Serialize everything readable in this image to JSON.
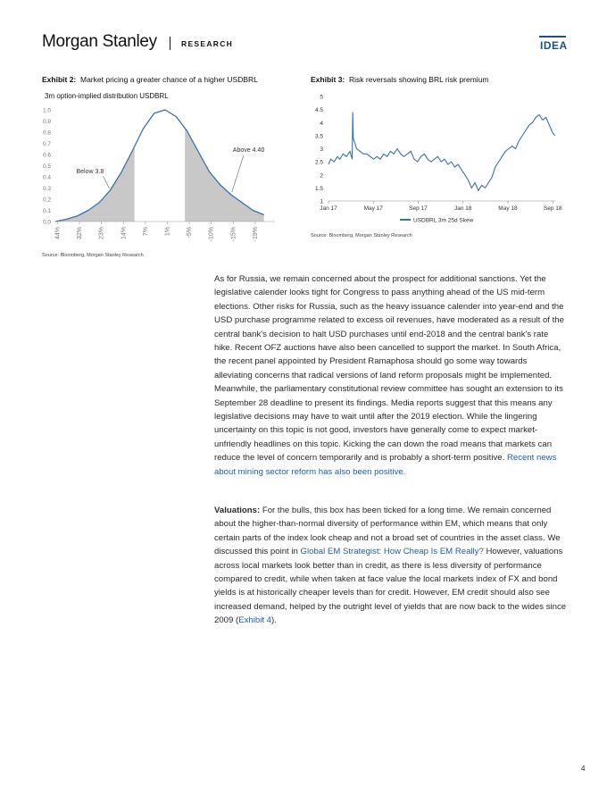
{
  "header": {
    "logo": "Morgan Stanley",
    "section": "RESEARCH",
    "tag": "IDEA"
  },
  "exhibit2": {
    "label": "Exhibit 2:",
    "title": "Market pricing a greater chance of a higher USDBRL",
    "source": "Source: Bloomberg, Morgan Stanley Research"
  },
  "exhibit3": {
    "label": "Exhibit 3:",
    "title": "Risk reversals showing BRL risk premium",
    "source": "Source: Bloomberg, Morgan Stanley Research"
  },
  "chart_data": [
    {
      "type": "area",
      "title": "3m option-implied distribution USDBRL",
      "categories": [
        "44%",
        "32%",
        "23%",
        "14%",
        "7%",
        "1%",
        "-5%",
        "-10%",
        "-15%",
        "-19%"
      ],
      "y_ticks": [
        "0.0",
        "0.1",
        "0.2",
        "0.3",
        "0.4",
        "0.5",
        "0.6",
        "0.7",
        "0.8",
        "0.9",
        "1.0"
      ],
      "ylim": [
        0,
        1.0
      ],
      "series": [
        {
          "x": [
            0,
            0.5,
            1,
            1.5,
            2,
            2.5,
            3,
            3.5,
            4,
            4.5,
            5,
            5.5,
            6,
            6.5,
            7,
            7.5,
            8,
            8.5,
            9,
            9.5
          ],
          "values": [
            0.0,
            0.02,
            0.05,
            0.1,
            0.17,
            0.28,
            0.44,
            0.63,
            0.83,
            0.97,
            1.0,
            0.94,
            0.81,
            0.63,
            0.45,
            0.33,
            0.24,
            0.17,
            0.1,
            0.06
          ]
        }
      ],
      "shaded_left_end": 3.6,
      "shaded_right_start": 5.9,
      "annotations": [
        {
          "text": "Below 3.8",
          "at_x": 2.5
        },
        {
          "text": "Above 4.40",
          "at_x": 8.0
        }
      ]
    },
    {
      "type": "line",
      "x_ticks": [
        "Jan 17",
        "May 17",
        "Sep 17",
        "Jan 18",
        "May 18",
        "Sep 18"
      ],
      "y_ticks": [
        "1",
        "1.5",
        "2",
        "2.5",
        "3",
        "3.5",
        "4",
        "4.5",
        "5"
      ],
      "ylim": [
        1,
        5
      ],
      "legend": "USDBRL 3m 25d Skew",
      "legend_position": "bottom",
      "series": [
        {
          "name": "USDBRL 3m 25d Skew",
          "x": [
            0,
            0.2,
            0.5,
            0.8,
            1.0,
            1.3,
            1.6,
            1.9,
            2.1,
            2.15,
            2.2,
            2.5,
            2.8,
            3.1,
            3.4,
            3.7,
            4.0,
            4.3,
            4.6,
            4.9,
            5.2,
            5.5,
            5.8,
            6.1,
            6.4,
            6.7,
            7.0,
            7.3,
            7.6,
            7.9,
            8.2,
            8.5,
            8.8,
            9.1,
            9.4,
            9.7,
            10.0,
            10.3,
            10.6,
            10.9,
            11.2,
            11.5,
            11.8,
            12.1,
            12.4,
            12.7,
            13.0,
            13.3,
            13.6,
            13.9,
            14.2,
            14.5,
            14.8,
            15.1,
            15.4,
            15.7,
            16.0,
            16.3,
            16.6,
            16.9,
            17.2,
            17.5,
            17.8,
            18.1,
            18.4,
            18.7,
            19.0,
            19.3,
            19.6,
            19.9,
            20.1
          ],
          "values": [
            2.4,
            2.6,
            2.5,
            2.7,
            2.6,
            2.8,
            2.7,
            2.9,
            2.6,
            4.4,
            3.4,
            3.0,
            2.9,
            2.8,
            2.8,
            2.7,
            2.6,
            2.7,
            2.6,
            2.8,
            2.7,
            2.9,
            2.8,
            3.0,
            2.8,
            2.7,
            2.8,
            2.9,
            2.6,
            2.5,
            2.7,
            2.8,
            2.6,
            2.5,
            2.6,
            2.7,
            2.5,
            2.6,
            2.4,
            2.5,
            2.3,
            2.4,
            2.2,
            2.0,
            1.8,
            1.5,
            1.7,
            1.4,
            1.6,
            1.5,
            1.7,
            1.9,
            2.3,
            2.5,
            2.7,
            2.9,
            3.0,
            3.1,
            3.0,
            3.3,
            3.5,
            3.7,
            3.9,
            4.0,
            4.2,
            4.3,
            4.1,
            4.2,
            3.9,
            3.6,
            3.5
          ]
        }
      ]
    }
  ],
  "body": {
    "paragraph1": "As for Russia, we remain concerned about the prospect for additional sanctions. Yet the legislative calender looks tight for Congress to pass anything ahead of the US mid-term elections. Other risks for Russia, such as the heavy issuance calender into year-end and the USD purchase programme related to excess oil revenues, have moderated as a result of the central bank's decision to halt USD purchases until end-2018 and the central bank's rate hike. Recent OFZ auctions have also been cancelled to support the market. In South Africa, the recent panel appointed by President Ramaphosa should go some way towards alleviating concerns that radical versions of land reform proposals might be implemented. Meanwhile, the parliamentary constitutional review committee has sought an extension to its September 28 deadline to present its findings. Media reports suggest that this means any legislative decisions may have to wait until after the 2019 election. While the lingering uncertainty on this topic is not good, investors have generally come to expect market-unfriendly headlines on this topic. Kicking the can down the road means that markets can reduce the level of concern temporarily and is probably a short-term positive.",
    "paragraph1_link": "Recent news about mining sector reform has also been positive.",
    "paragraph2_lead": "Valuations:",
    "paragraph2_a": "For the bulls, this box has been ticked for a long time. We remain concerned about the higher-than-normal diversity of performance within EM, which means that only certain parts of the index look cheap and not a broad set of countries in the asset class. We discussed this point in",
    "paragraph2_link": "Global EM Strategist: How Cheap Is EM Really?",
    "paragraph2_b": "However, valuations across local markets look better than in credit, as there is less diversity of performance compared to credit, while when taken at face value the local markets index of FX and bond yields is at historically cheaper levels than for credit. However, EM credit should also see increased demand, helped by the outright level of yields that are now back to the wides since 2009 (",
    "paragraph2_link2": "Exhibit 4",
    "paragraph2_c": ")."
  },
  "page_number": "4",
  "colors": {
    "brand_blue": "#1f4e89",
    "series_blue": "#3a6fb0",
    "shade_gray": "#c8c8c8",
    "link_blue": "#1f5ea8"
  }
}
